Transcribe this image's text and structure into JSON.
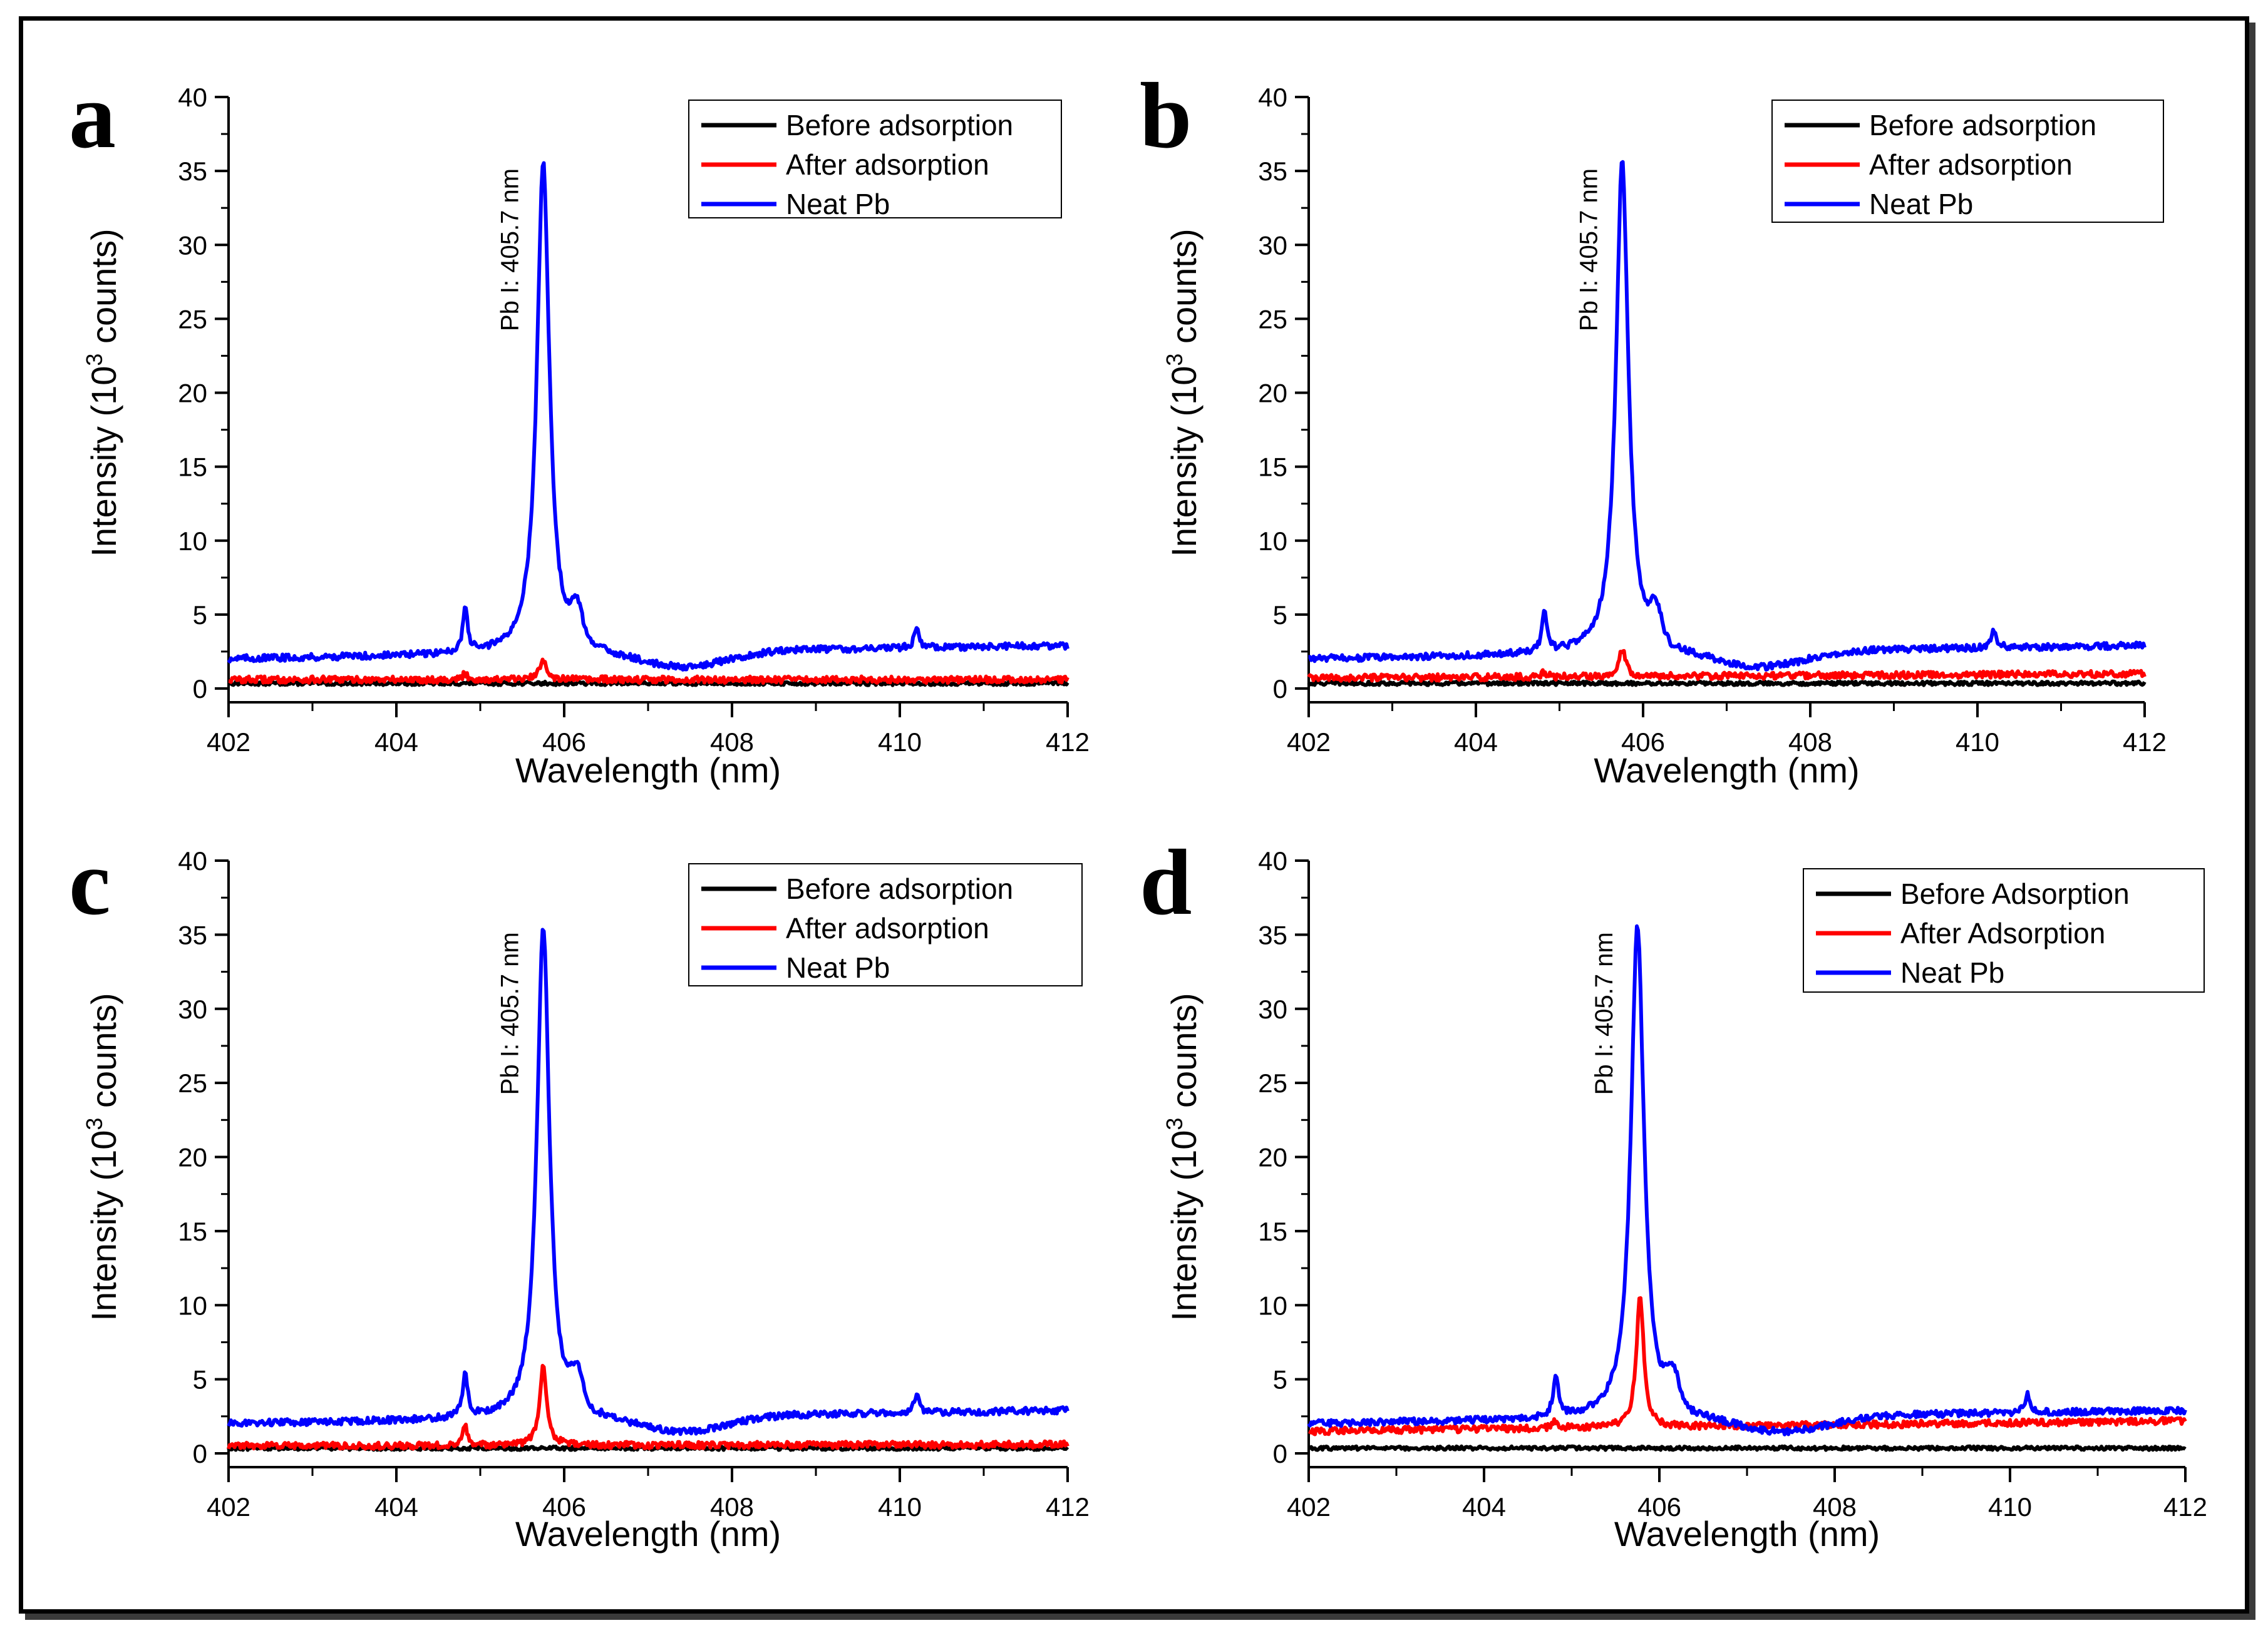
{
  "chart_data": [
    {
      "type": "line",
      "panel_label": "a",
      "title": "",
      "xlabel": "Wavelength (nm)",
      "ylabel": "Intensity (10",
      "ylabel_sup": "3",
      "ylabel_tail": "counts)",
      "xlim": [
        402,
        412
      ],
      "ylim": [
        0,
        40
      ],
      "xticks": [
        402,
        404,
        406,
        408,
        410,
        412
      ],
      "yticks": [
        0,
        5,
        10,
        15,
        20,
        25,
        30,
        35,
        40
      ],
      "annotation": {
        "text": "Pb I: 405.7 nm",
        "x": 405.75,
        "y": 35.6
      },
      "legend": [
        "Before adsorption",
        "After adsorption",
        "Neat Pb"
      ],
      "series": [
        {
          "name": "Before adsorption",
          "color": "#000000",
          "base": 0.35,
          "peaks": []
        },
        {
          "name": "After adsorption",
          "color": "#ff0000",
          "base_start": 0.6,
          "base_end": 0.6,
          "peaks": [
            {
              "x": 404.82,
              "y": 1.0
            },
            {
              "x": 405.75,
              "y": 2.0
            }
          ]
        },
        {
          "name": "Neat Pb",
          "color": "#0000ff",
          "base_start": 2.0,
          "base_end": 2.9,
          "peaks": [
            {
              "x": 404.82,
              "y": 5.2
            },
            {
              "x": 405.75,
              "y": 35.6
            },
            {
              "x": 410.2,
              "y": 4.0
            }
          ]
        }
      ]
    },
    {
      "type": "line",
      "panel_label": "b",
      "title": "",
      "xlabel": "Wavelength (nm)",
      "ylabel": "Intensity (10",
      "ylabel_sup": "3",
      "ylabel_tail": "counts)",
      "xlim": [
        402,
        412
      ],
      "ylim": [
        0,
        40
      ],
      "xticks": [
        402,
        404,
        406,
        408,
        410,
        412
      ],
      "yticks": [
        0,
        5,
        10,
        15,
        20,
        25,
        30,
        35,
        40
      ],
      "annotation": {
        "text": "Pb I: 405.7 nm",
        "x": 405.75,
        "y": 35.6
      },
      "legend": [
        "Before adsorption",
        "After adsorption",
        "Neat Pb"
      ],
      "series": [
        {
          "name": "Before adsorption",
          "color": "#000000",
          "base": 0.35,
          "peaks": []
        },
        {
          "name": "After adsorption",
          "color": "#ff0000",
          "base_start": 0.7,
          "base_end": 1.0,
          "peaks": [
            {
              "x": 404.82,
              "y": 1.1
            },
            {
              "x": 405.75,
              "y": 2.7
            }
          ]
        },
        {
          "name": "Neat Pb",
          "color": "#0000ff",
          "base_start": 2.0,
          "base_end": 2.9,
          "peaks": [
            {
              "x": 404.82,
              "y": 5.2
            },
            {
              "x": 405.75,
              "y": 35.6
            },
            {
              "x": 410.2,
              "y": 4.0
            }
          ]
        }
      ]
    },
    {
      "type": "line",
      "panel_label": "c",
      "title": "",
      "xlabel": "Wavelength (nm)",
      "ylabel": "Intensity (10",
      "ylabel_sup": "3",
      "ylabel_tail": "counts)",
      "xlim": [
        402,
        412
      ],
      "ylim": [
        0,
        40
      ],
      "xticks": [
        402,
        404,
        406,
        408,
        410,
        412
      ],
      "yticks": [
        0,
        5,
        10,
        15,
        20,
        25,
        30,
        35,
        40
      ],
      "annotation": {
        "text": "Pb I: 405.7 nm",
        "x": 405.75,
        "y": 35.6
      },
      "legend": [
        "Before adsorption",
        "After adsorption",
        "Neat Pb"
      ],
      "series": [
        {
          "name": "Before adsorption",
          "color": "#000000",
          "base": 0.35,
          "peaks": []
        },
        {
          "name": "After adsorption",
          "color": "#ff0000",
          "base_start": 0.5,
          "base_end": 0.6,
          "peaks": [
            {
              "x": 404.82,
              "y": 1.8
            },
            {
              "x": 405.75,
              "y": 6.0
            }
          ]
        },
        {
          "name": "Neat Pb",
          "color": "#0000ff",
          "base_start": 2.0,
          "base_end": 2.9,
          "peaks": [
            {
              "x": 404.82,
              "y": 5.2
            },
            {
              "x": 405.75,
              "y": 35.6
            },
            {
              "x": 410.2,
              "y": 4.0
            }
          ]
        }
      ]
    },
    {
      "type": "line",
      "panel_label": "d",
      "title": "",
      "xlabel": "Wavelength (nm)",
      "ylabel": "Intensity (10",
      "ylabel_sup": "3",
      "ylabel_tail": "counts)",
      "xlim": [
        402,
        412
      ],
      "ylim": [
        0,
        40
      ],
      "xticks": [
        402,
        404,
        406,
        408,
        410,
        412
      ],
      "yticks": [
        0,
        5,
        10,
        15,
        20,
        25,
        30,
        35,
        40
      ],
      "annotation": {
        "text": "Pb I: 405.7 nm",
        "x": 405.75,
        "y": 35.6
      },
      "legend": [
        "Before Adsorption",
        "After Adsorption",
        "Neat Pb"
      ],
      "series": [
        {
          "name": "Before Adsorption",
          "color": "#000000",
          "base": 0.35,
          "peaks": []
        },
        {
          "name": "After Adsorption",
          "color": "#ff0000",
          "base_start": 1.5,
          "base_end": 2.2,
          "peaks": [
            {
              "x": 404.82,
              "y": 2.2
            },
            {
              "x": 405.78,
              "y": 10.8
            }
          ]
        },
        {
          "name": "Neat Pb",
          "color": "#0000ff",
          "base_start": 2.0,
          "base_end": 2.9,
          "peaks": [
            {
              "x": 404.82,
              "y": 5.2
            },
            {
              "x": 405.75,
              "y": 35.6
            },
            {
              "x": 410.2,
              "y": 4.0
            }
          ]
        }
      ]
    }
  ]
}
